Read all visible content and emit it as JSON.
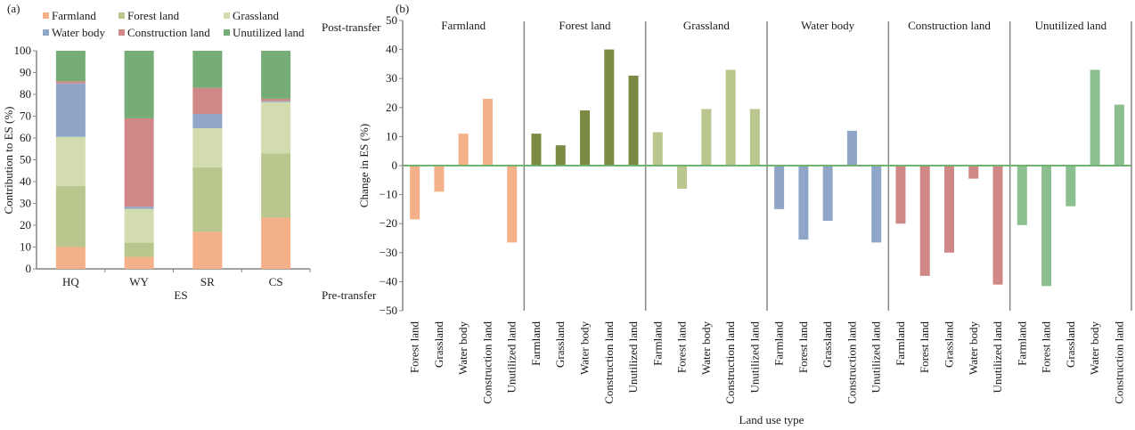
{
  "colors": {
    "Farmland": "#f4b088",
    "Forest land": "#b9c78f",
    "Grassland": "#d2dcae",
    "Water body": "#90a6c8",
    "Construction land": "#cf8886",
    "Unutilized land": "#76ad77",
    "Forest land dark": "#7a8a42",
    "Unutilized land light": "#8cbf90",
    "axis": "#8a8484",
    "zero_line": "#6fb36f"
  },
  "chart_data": [
    {
      "panel_label": "(a)",
      "type": "bar",
      "stacked": true,
      "title": "",
      "xlabel": "ES",
      "ylabel": "Contribution to ES (%)",
      "ylim": [
        0,
        100
      ],
      "yticks": [
        0,
        10,
        20,
        30,
        40,
        50,
        60,
        70,
        80,
        90,
        100
      ],
      "categories": [
        "HQ",
        "WY",
        "SR",
        "CS"
      ],
      "legend": {
        "placement": "top",
        "entries": [
          "Farmland",
          "Forest land",
          "Grassland",
          "Water body",
          "Construction land",
          "Unutilized land"
        ]
      },
      "series": [
        {
          "name": "Farmland",
          "values": [
            10,
            5.5,
            17,
            23.5
          ]
        },
        {
          "name": "Forest land",
          "values": [
            28,
            6.5,
            29.5,
            29.5
          ]
        },
        {
          "name": "Grassland",
          "values": [
            22.5,
            15.5,
            18,
            23.5
          ]
        },
        {
          "name": "Water body",
          "values": [
            24.5,
            1,
            6.5,
            0.5
          ]
        },
        {
          "name": "Construction land",
          "values": [
            1,
            40.5,
            12,
            1
          ]
        },
        {
          "name": "Unutilized land",
          "values": [
            14,
            31,
            17,
            22
          ]
        }
      ]
    },
    {
      "panel_label": "(b)",
      "type": "bar",
      "title": "",
      "xlabel": "Land use type",
      "ylabel": "Change in  ES (%)",
      "ylim": [
        -50,
        50
      ],
      "yticks": [
        -50,
        -40,
        -30,
        -20,
        -10,
        0,
        10,
        20,
        30,
        40,
        50
      ],
      "annotations": {
        "top": "Post-transfer",
        "bottom": "Pre-transfer"
      },
      "groups": [
        {
          "name": "Farmland",
          "color_key": "Farmland",
          "categories": [
            "Forest land",
            "Grassland",
            "Water body",
            "Construction land",
            "Unutilized land"
          ],
          "values": [
            -18.5,
            -9,
            11,
            23,
            -26.5
          ]
        },
        {
          "name": "Forest land",
          "color_key": "Forest land dark",
          "categories": [
            "Farmland",
            "Grassland",
            "Water body",
            "Construction land",
            "Unutilized land"
          ],
          "values": [
            11,
            7,
            19,
            40,
            31
          ]
        },
        {
          "name": "Grassland",
          "color_key": "Forest land",
          "categories": [
            "Farmland",
            "Forest land",
            "Water body",
            "Construction land",
            "Unutilized land"
          ],
          "values": [
            11.5,
            -8,
            19.5,
            33,
            19.5
          ]
        },
        {
          "name": "Water body",
          "color_key": "Water body",
          "categories": [
            "Farmland",
            "Forest land",
            "Grassland",
            "Construction land",
            "Unutilized land"
          ],
          "values": [
            -15,
            -25.5,
            -19,
            12,
            -26.5
          ]
        },
        {
          "name": "Construction land",
          "color_key": "Construction land",
          "categories": [
            "Farmland",
            "Forest land",
            "Grassland",
            "Water body",
            "Unutilized land"
          ],
          "values": [
            -20,
            -38,
            -30,
            -4.5,
            -41
          ]
        },
        {
          "name": "Unutilized land",
          "color_key": "Unutilized land light",
          "categories": [
            "Farmland",
            "Forest land",
            "Grassland",
            "Water body",
            "Construction land"
          ],
          "values": [
            -20.5,
            -41.5,
            -14,
            33,
            21
          ]
        }
      ]
    }
  ]
}
